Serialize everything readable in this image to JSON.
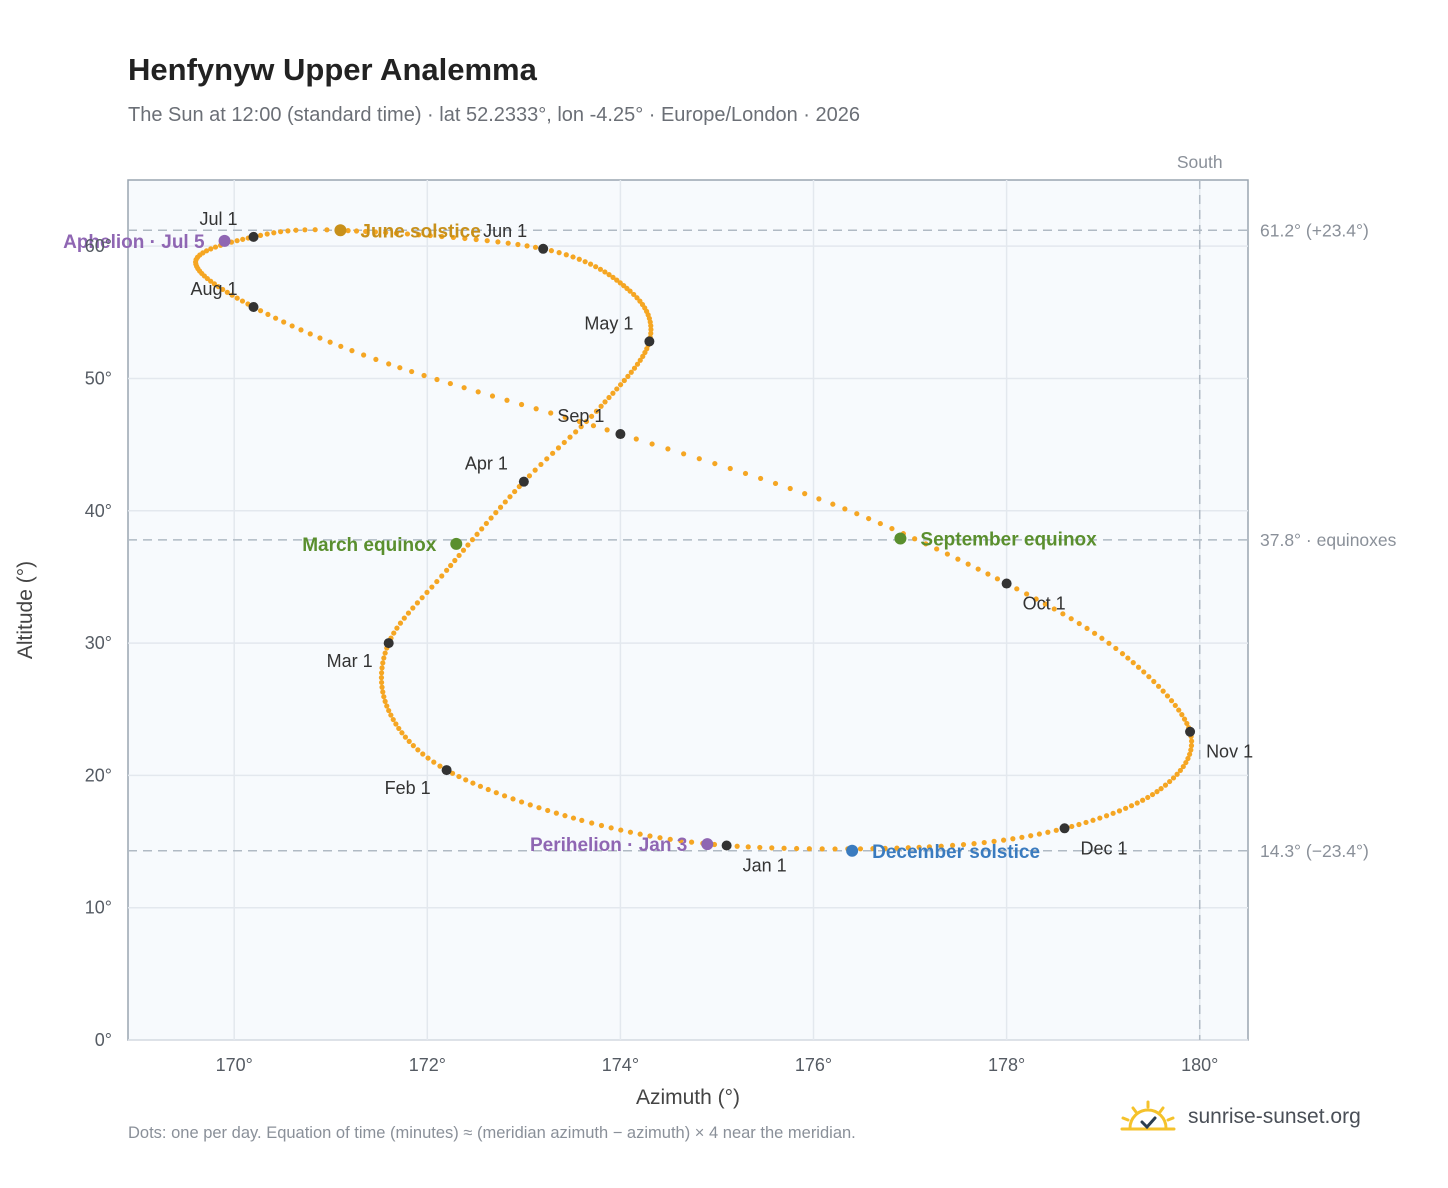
{
  "header": {
    "title": "Henfynyw Upper Analemma",
    "subtitle": "The Sun at 12:00 (standard time) · lat 52.2333°, lon -4.25° · Europe/London · 2026"
  },
  "footer": {
    "note": "Dots: one per day. Equation of time (minutes) ≈ (meridian azimuth − azimuth) × 4 near the meridian.",
    "brand": "sunrise-sunset.org"
  },
  "chart_data": {
    "type": "scatter",
    "xlabel": "Azimuth (°)",
    "ylabel": "Altitude (°)",
    "xlim": [
      168.9,
      180.5
    ],
    "ylim": [
      0,
      65
    ],
    "xticks": [
      170,
      172,
      174,
      176,
      178,
      180
    ],
    "yticks": [
      0,
      10,
      20,
      30,
      40,
      50,
      60
    ],
    "tick_suffix": "°",
    "grid": true,
    "colors": {
      "path": "#f5a623",
      "month_marker": "#333333",
      "june_solstice": "#c8901a",
      "december_solstice": "#3a7bbf",
      "equinox": "#5a8f2e",
      "apsis": "#8f66b3",
      "reference_line": "#b0bac4",
      "plot_background": "#f7fafd"
    },
    "path_anchors": [
      {
        "date": "Jan 1",
        "az": 175.1,
        "alt": 14.7
      },
      {
        "date": "Jan 15",
        "az": 173.6,
        "alt": 16.6
      },
      {
        "date": "Feb 1",
        "az": 172.2,
        "alt": 20.4
      },
      {
        "date": "Feb 15",
        "az": 171.6,
        "alt": 24.9
      },
      {
        "date": "Mar 1",
        "az": 171.6,
        "alt": 30.0
      },
      {
        "date": "Mar 15",
        "az": 172.2,
        "alt": 35.5
      },
      {
        "date": "Apr 1",
        "az": 173.0,
        "alt": 42.2
      },
      {
        "date": "Apr 15",
        "az": 173.8,
        "alt": 47.9
      },
      {
        "date": "May 1",
        "az": 174.3,
        "alt": 52.8
      },
      {
        "date": "May 15",
        "az": 174.1,
        "alt": 56.6
      },
      {
        "date": "Jun 1",
        "az": 173.2,
        "alt": 59.8
      },
      {
        "date": "Jun 21",
        "az": 171.1,
        "alt": 61.2
      },
      {
        "date": "Jul 1",
        "az": 170.2,
        "alt": 60.7
      },
      {
        "date": "Jul 15",
        "az": 169.6,
        "alt": 58.8
      },
      {
        "date": "Aug 1",
        "az": 170.2,
        "alt": 55.4
      },
      {
        "date": "Aug 15",
        "az": 171.6,
        "alt": 51.1
      },
      {
        "date": "Sep 1",
        "az": 174.0,
        "alt": 45.8
      },
      {
        "date": "Sep 15",
        "az": 176.2,
        "alt": 40.5
      },
      {
        "date": "Oct 1",
        "az": 178.0,
        "alt": 34.5
      },
      {
        "date": "Oct 15",
        "az": 179.2,
        "alt": 29.2
      },
      {
        "date": "Nov 1",
        "az": 179.9,
        "alt": 23.3
      },
      {
        "date": "Nov 15",
        "az": 179.6,
        "alt": 19.0
      },
      {
        "date": "Dec 1",
        "az": 178.6,
        "alt": 16.0
      },
      {
        "date": "Dec 15",
        "az": 177.2,
        "alt": 14.6
      },
      {
        "date": "Dec 31",
        "az": 175.2,
        "alt": 14.7
      }
    ],
    "month_markers": [
      {
        "label": "Jan 1",
        "az": 175.1,
        "alt": 14.7,
        "anchor": "below-right"
      },
      {
        "label": "Feb 1",
        "az": 172.2,
        "alt": 20.4,
        "anchor": "below-left"
      },
      {
        "label": "Mar 1",
        "az": 171.6,
        "alt": 30.0,
        "anchor": "below-left"
      },
      {
        "label": "Apr 1",
        "az": 173.0,
        "alt": 42.2,
        "anchor": "above-left"
      },
      {
        "label": "May 1",
        "az": 174.3,
        "alt": 52.8,
        "anchor": "above-left"
      },
      {
        "label": "Jun 1",
        "az": 173.2,
        "alt": 59.8,
        "anchor": "above-left"
      },
      {
        "label": "Jul 1",
        "az": 170.2,
        "alt": 60.7,
        "anchor": "above-left"
      },
      {
        "label": "Aug 1",
        "az": 170.2,
        "alt": 55.4,
        "anchor": "above-left"
      },
      {
        "label": "Sep 1",
        "az": 174.0,
        "alt": 45.8,
        "anchor": "above-left"
      },
      {
        "label": "Oct 1",
        "az": 178.0,
        "alt": 34.5,
        "anchor": "below-right"
      },
      {
        "label": "Nov 1",
        "az": 179.9,
        "alt": 23.3,
        "anchor": "below-right"
      },
      {
        "label": "Dec 1",
        "az": 178.6,
        "alt": 16.0,
        "anchor": "below-right"
      }
    ],
    "events": [
      {
        "label": "June solstice",
        "az": 171.1,
        "alt": 61.2,
        "color_key": "june_solstice",
        "side": "right"
      },
      {
        "label": "December solstice",
        "az": 176.4,
        "alt": 14.3,
        "color_key": "december_solstice",
        "side": "right"
      },
      {
        "label": "March equinox",
        "az": 172.3,
        "alt": 37.5,
        "color_key": "equinox",
        "side": "left"
      },
      {
        "label": "September equinox",
        "az": 176.9,
        "alt": 37.9,
        "color_key": "equinox",
        "side": "right"
      },
      {
        "label": "Aphelion · Jul 5",
        "az": 169.9,
        "alt": 60.4,
        "color_key": "apsis",
        "side": "left"
      },
      {
        "label": "Perihelion · Jan 3",
        "az": 174.9,
        "alt": 14.8,
        "color_key": "apsis",
        "side": "left"
      }
    ],
    "reference_lines": [
      {
        "alt": 61.2,
        "label": "61.2° (+23.4°)"
      },
      {
        "alt": 37.8,
        "label": "37.8° · equinoxes"
      },
      {
        "alt": 14.3,
        "label": "14.3° (−23.4°)"
      }
    ],
    "meridian": {
      "az": 180,
      "label": "South"
    }
  }
}
